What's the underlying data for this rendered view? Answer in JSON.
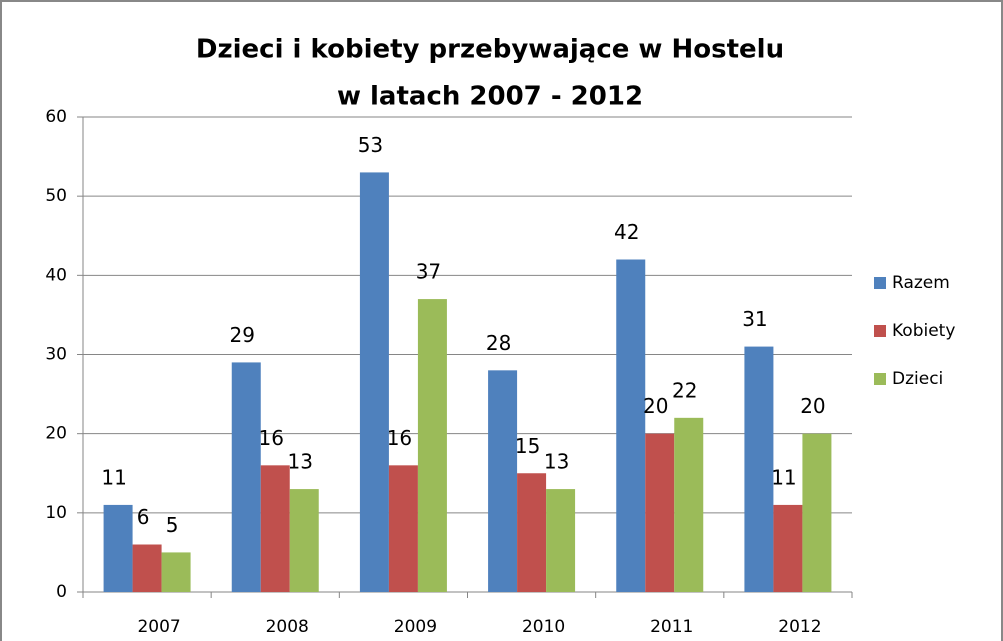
{
  "chart_data": {
    "type": "bar",
    "title": [
      "Dzieci i kobiety przebywające w Hostelu",
      "w latach 2007 - 2012"
    ],
    "categories": [
      "2007",
      "2008",
      "2009",
      "2010",
      "2011",
      "2012"
    ],
    "series": [
      {
        "name": "Razem",
        "color": "#4f81bd",
        "values": [
          11,
          29,
          53,
          28,
          42,
          31
        ]
      },
      {
        "name": "Kobiety",
        "color": "#c0504d",
        "values": [
          6,
          16,
          16,
          15,
          20,
          11
        ]
      },
      {
        "name": "Dzieci",
        "color": "#9bbb59",
        "values": [
          5,
          13,
          37,
          13,
          22,
          20
        ]
      }
    ],
    "ylim": [
      0,
      60
    ],
    "yticks": [
      0,
      10,
      20,
      30,
      40,
      50,
      60
    ],
    "grid": true,
    "legend": "right"
  }
}
